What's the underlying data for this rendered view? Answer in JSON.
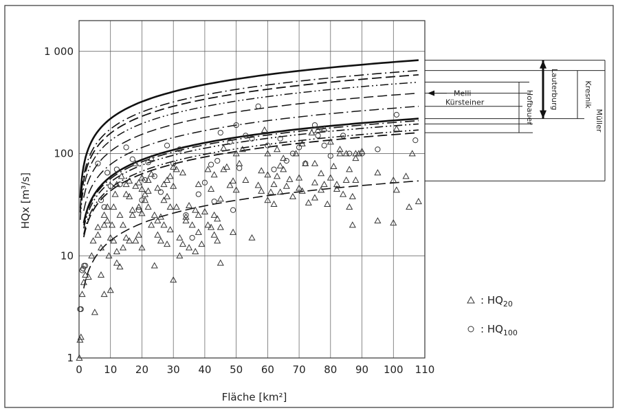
{
  "chart_data": {
    "type": "scatter",
    "title": "",
    "xlabel": "Fläche [km²]",
    "ylabel": "HQx [m³/s]",
    "xlim": [
      0,
      110
    ],
    "ylim": [
      1,
      2000
    ],
    "y_scale": "log",
    "grid": true,
    "x_ticks": [
      0,
      10,
      20,
      30,
      40,
      50,
      60,
      70,
      80,
      90,
      100,
      110
    ],
    "y_ticks": [
      {
        "value": 1,
        "label": "1"
      },
      {
        "value": 10,
        "label": "10"
      },
      {
        "value": 100,
        "label": "100"
      },
      {
        "value": 1000,
        "label": "1 000"
      }
    ],
    "legend": {
      "placement": "lower-right",
      "items": [
        {
          "marker": "triangle",
          "label": "HQ",
          "sub": "20"
        },
        {
          "marker": "circle",
          "label": "HQ",
          "sub": "100"
        }
      ]
    },
    "series": [
      {
        "marker": "triangle",
        "points": [
          [
            0.1,
            1
          ],
          [
            0.3,
            1.5
          ],
          [
            0.6,
            1.6
          ],
          [
            1,
            4.2
          ],
          [
            1.5,
            5.5
          ],
          [
            2,
            6.5
          ],
          [
            3,
            6.2
          ],
          [
            4,
            10
          ],
          [
            4.5,
            14
          ],
          [
            5,
            2.8
          ],
          [
            6,
            19
          ],
          [
            6,
            16
          ],
          [
            7,
            6.5
          ],
          [
            7,
            12
          ],
          [
            8,
            25
          ],
          [
            8,
            20
          ],
          [
            8,
            4.2
          ],
          [
            9,
            30
          ],
          [
            9,
            22
          ],
          [
            9.5,
            10
          ],
          [
            10,
            4.6
          ],
          [
            10,
            15
          ],
          [
            10.5,
            20
          ],
          [
            11,
            30
          ],
          [
            11,
            14
          ],
          [
            11.5,
            40
          ],
          [
            12,
            50
          ],
          [
            12,
            11
          ],
          [
            12,
            8.5
          ],
          [
            13,
            7.8
          ],
          [
            13,
            25
          ],
          [
            13.5,
            60
          ],
          [
            14,
            20
          ],
          [
            14,
            12
          ],
          [
            15,
            40
          ],
          [
            15,
            50
          ],
          [
            15,
            15
          ],
          [
            16,
            38
          ],
          [
            16,
            54
          ],
          [
            16,
            14
          ],
          [
            17,
            25
          ],
          [
            17,
            28
          ],
          [
            18,
            80
          ],
          [
            18,
            48
          ],
          [
            18,
            14
          ],
          [
            19,
            30
          ],
          [
            19,
            52
          ],
          [
            19,
            16
          ],
          [
            20,
            26
          ],
          [
            20,
            45
          ],
          [
            20,
            58
          ],
          [
            20,
            12
          ],
          [
            21,
            35
          ],
          [
            21,
            40
          ],
          [
            22,
            43
          ],
          [
            22,
            55
          ],
          [
            22,
            30
          ],
          [
            23,
            90
          ],
          [
            23,
            63
          ],
          [
            23,
            20
          ],
          [
            24,
            25
          ],
          [
            24,
            8
          ],
          [
            25,
            16
          ],
          [
            25,
            22
          ],
          [
            25,
            46
          ],
          [
            26,
            14
          ],
          [
            26,
            24
          ],
          [
            27,
            35
          ],
          [
            27,
            50
          ],
          [
            27,
            20
          ],
          [
            28,
            55
          ],
          [
            28,
            38
          ],
          [
            28,
            13
          ],
          [
            29,
            30
          ],
          [
            29,
            18
          ],
          [
            29,
            60
          ],
          [
            30,
            74
          ],
          [
            30,
            5.8
          ],
          [
            30,
            48
          ],
          [
            31,
            70
          ],
          [
            31,
            30
          ],
          [
            32,
            15
          ],
          [
            32,
            10
          ],
          [
            33,
            13
          ],
          [
            33,
            65
          ],
          [
            34,
            22
          ],
          [
            34,
            24
          ],
          [
            35,
            12
          ],
          [
            35,
            31
          ],
          [
            36,
            20
          ],
          [
            37,
            11
          ],
          [
            37,
            28
          ],
          [
            38,
            50
          ],
          [
            38,
            17
          ],
          [
            38,
            25
          ],
          [
            39,
            13
          ],
          [
            40,
            27
          ],
          [
            41,
            20
          ],
          [
            41,
            70
          ],
          [
            42,
            19
          ],
          [
            42,
            45
          ],
          [
            43,
            25
          ],
          [
            43,
            62
          ],
          [
            43,
            16
          ],
          [
            44,
            14
          ],
          [
            44,
            23
          ],
          [
            45,
            36
          ],
          [
            45,
            19
          ],
          [
            45,
            8.5
          ],
          [
            46,
            70
          ],
          [
            46,
            113
          ],
          [
            47,
            74
          ],
          [
            48,
            49
          ],
          [
            49,
            54
          ],
          [
            49,
            17
          ],
          [
            50,
            100
          ],
          [
            50,
            44
          ],
          [
            51,
            80
          ],
          [
            52,
            110
          ],
          [
            53,
            55
          ],
          [
            55,
            15
          ],
          [
            57,
            49
          ],
          [
            58,
            43
          ],
          [
            58,
            68
          ],
          [
            59,
            170
          ],
          [
            60,
            35
          ],
          [
            60,
            62
          ],
          [
            60,
            100
          ],
          [
            61,
            42
          ],
          [
            62,
            50
          ],
          [
            62,
            32
          ],
          [
            63,
            110
          ],
          [
            63,
            60
          ],
          [
            64,
            76
          ],
          [
            64,
            42
          ],
          [
            65,
            90
          ],
          [
            65,
            70
          ],
          [
            66,
            48
          ],
          [
            67,
            56
          ],
          [
            68,
            38
          ],
          [
            69,
            100
          ],
          [
            70,
            58
          ],
          [
            70,
            46
          ],
          [
            71,
            125
          ],
          [
            71,
            43
          ],
          [
            72,
            80
          ],
          [
            73,
            33
          ],
          [
            74,
            160
          ],
          [
            75,
            37
          ],
          [
            75,
            52
          ],
          [
            75,
            80
          ],
          [
            76,
            170
          ],
          [
            77,
            44
          ],
          [
            77,
            64
          ],
          [
            78,
            175
          ],
          [
            78,
            50
          ],
          [
            79,
            32
          ],
          [
            80,
            130
          ],
          [
            80,
            58
          ],
          [
            81,
            75
          ],
          [
            82,
            50
          ],
          [
            82,
            45
          ],
          [
            83,
            100
          ],
          [
            83,
            110
          ],
          [
            84,
            40
          ],
          [
            85,
            55
          ],
          [
            85,
            100
          ],
          [
            86,
            70
          ],
          [
            86,
            30
          ],
          [
            87,
            38
          ],
          [
            87,
            20
          ],
          [
            88,
            90
          ],
          [
            88,
            55
          ],
          [
            88,
            100
          ],
          [
            89,
            100
          ],
          [
            90,
            105
          ],
          [
            95,
            22
          ],
          [
            95,
            65
          ],
          [
            100,
            55
          ],
          [
            100,
            21
          ],
          [
            101,
            175
          ],
          [
            101,
            44
          ],
          [
            104,
            60
          ],
          [
            105,
            30
          ],
          [
            106,
            100
          ],
          [
            108,
            34
          ]
        ]
      },
      {
        "marker": "circle",
        "points": [
          [
            0.3,
            3
          ],
          [
            0.6,
            3
          ],
          [
            1,
            7.2
          ],
          [
            1.3,
            7.5
          ],
          [
            1.6,
            8
          ],
          [
            2,
            8
          ],
          [
            6,
            80
          ],
          [
            7,
            35
          ],
          [
            8,
            30
          ],
          [
            9,
            65
          ],
          [
            10,
            48
          ],
          [
            12,
            70
          ],
          [
            13,
            50
          ],
          [
            15,
            115
          ],
          [
            17,
            88
          ],
          [
            19,
            28
          ],
          [
            20,
            35
          ],
          [
            21,
            55
          ],
          [
            22,
            82
          ],
          [
            24,
            60
          ],
          [
            26,
            42
          ],
          [
            28,
            120
          ],
          [
            30,
            80
          ],
          [
            32,
            110
          ],
          [
            34,
            25
          ],
          [
            36,
            15
          ],
          [
            38,
            40
          ],
          [
            40,
            52
          ],
          [
            42,
            78
          ],
          [
            43,
            34
          ],
          [
            44,
            85
          ],
          [
            45,
            160
          ],
          [
            48,
            130
          ],
          [
            49,
            28
          ],
          [
            50,
            190
          ],
          [
            51,
            72
          ],
          [
            53,
            150
          ],
          [
            55,
            140
          ],
          [
            57,
            290
          ],
          [
            60,
            120
          ],
          [
            62,
            70
          ],
          [
            64,
            140
          ],
          [
            66,
            85
          ],
          [
            68,
            100
          ],
          [
            70,
            115
          ],
          [
            72,
            80
          ],
          [
            75,
            190
          ],
          [
            76,
            150
          ],
          [
            78,
            120
          ],
          [
            80,
            95
          ],
          [
            84,
            150
          ],
          [
            86,
            100
          ],
          [
            90,
            100
          ],
          [
            95,
            110
          ],
          [
            101,
            240
          ],
          [
            107,
            135
          ]
        ]
      }
    ],
    "curves": [
      {
        "style": "solid",
        "width": 2.6,
        "top": 820,
        "label": "Lauterburg"
      },
      {
        "style": "dash-dot",
        "width": 1.6,
        "top": 650
      },
      {
        "style": "dash",
        "width": 1.8,
        "top": 590
      },
      {
        "style": "dash-dot-dot",
        "width": 1.5,
        "top": 500
      },
      {
        "style": "dash",
        "width": 1.5,
        "top": 390,
        "label": "Melli"
      },
      {
        "style": "dash-dot",
        "width": 1.5,
        "top": 290,
        "label": "Kürsteiner"
      },
      {
        "style": "solid",
        "width": 2.6,
        "top": 220
      },
      {
        "style": "dash-dot",
        "width": 1.6,
        "top": 210
      },
      {
        "style": "dash-dot-dot",
        "width": 1.6,
        "top": 195
      },
      {
        "style": "dash-dot-dot",
        "width": 1.6,
        "top": 170
      },
      {
        "style": "dash",
        "width": 1.8,
        "top": 160
      },
      {
        "style": "dash",
        "width": 1.6,
        "top": 54
      }
    ],
    "annotations": [
      "Melli",
      "Kürsteiner",
      "Hofbauer",
      "Lauterburg",
      "Kresnik",
      "Müller"
    ]
  }
}
